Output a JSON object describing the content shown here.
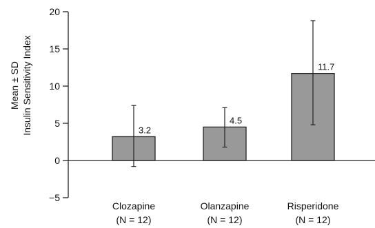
{
  "chart_data": {
    "type": "bar",
    "title": "",
    "xlabel": "",
    "ylabel": [
      "Mean ± SD",
      "Insulin Sensitivity Index"
    ],
    "categories": [
      {
        "name": "Clozapine",
        "n": "(N = 12)"
      },
      {
        "name": "Olanzapine",
        "n": "(N = 12)"
      },
      {
        "name": "Risperidone",
        "n": "(N = 12)"
      }
    ],
    "values": [
      3.2,
      4.5,
      11.7
    ],
    "value_labels": [
      "3.2",
      "4.5",
      "11.7"
    ],
    "error_bars": [
      {
        "low": -0.8,
        "high": 7.4
      },
      {
        "low": 1.8,
        "high": 7.1
      },
      {
        "low": 4.8,
        "high": 18.8
      }
    ],
    "ylim": [
      -5,
      20
    ],
    "yticks": [
      -5,
      0,
      5,
      10,
      15,
      20
    ],
    "ytick_labels": [
      "−5",
      "0",
      "5",
      "10",
      "15",
      "20"
    ],
    "grid": false,
    "bar_color": "#999999",
    "bar_edge_color": "#222222"
  }
}
